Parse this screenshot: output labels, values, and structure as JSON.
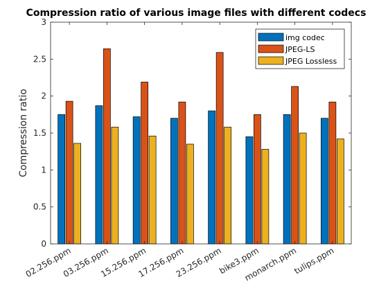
{
  "chart_data": {
    "type": "bar",
    "title": "Compression ratio of various image files with different codecs",
    "xlabel": "",
    "ylabel": "Compression ratio",
    "ylim": [
      0,
      3
    ],
    "yticks": [
      0,
      0.5,
      1,
      1.5,
      2,
      2.5,
      3
    ],
    "ytick_labels": [
      "0",
      "0.5",
      "1",
      "1.5",
      "2",
      "2.5",
      "3"
    ],
    "grid": false,
    "legend_position": "top-right",
    "categories": [
      "02.256.ppm",
      "03.256.ppm",
      "15.256.ppm",
      "17.256.ppm",
      "23.256.ppm",
      "bike3.ppm",
      "monarch.ppm",
      "tulips.ppm"
    ],
    "series": [
      {
        "name": "img codec",
        "color": "#0072BD",
        "values": [
          1.75,
          1.87,
          1.72,
          1.7,
          1.8,
          1.45,
          1.75,
          1.7
        ]
      },
      {
        "name": "JPEG-LS",
        "color": "#D95319",
        "values": [
          1.93,
          2.64,
          2.19,
          1.92,
          2.59,
          1.75,
          2.13,
          1.92
        ]
      },
      {
        "name": "JPEG Lossless",
        "color": "#EDB120",
        "values": [
          1.36,
          1.58,
          1.46,
          1.35,
          1.58,
          1.28,
          1.5,
          1.42
        ]
      }
    ]
  }
}
